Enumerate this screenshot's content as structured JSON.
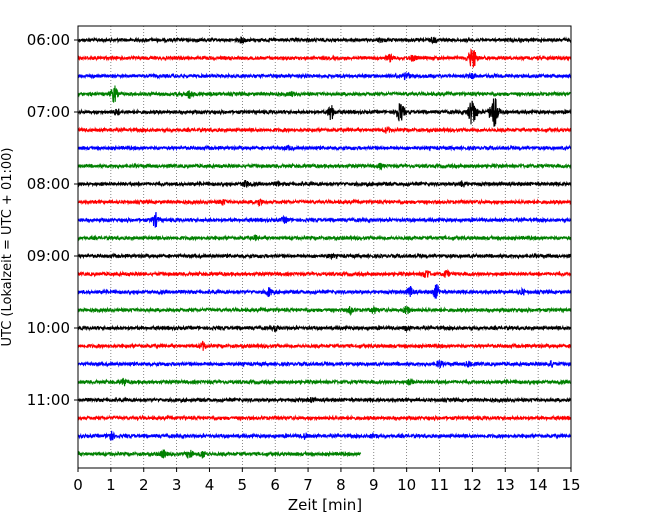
{
  "chart_data": {
    "type": "line",
    "title": "",
    "xlabel": "Zeit  [min]",
    "ylabel": "UTC (Lokalzeit = UTC + 01:00)",
    "xlim": [
      0,
      15
    ],
    "x_ticks": [
      "0",
      "1",
      "2",
      "3",
      "4",
      "5",
      "6",
      "7",
      "8",
      "9",
      "10",
      "11",
      "12",
      "13",
      "14",
      "15"
    ],
    "y_ticks": [
      "06:00",
      "07:00",
      "08:00",
      "09:00",
      "10:00",
      "11:00"
    ],
    "grid": "vertical dotted",
    "trace_interval_minutes": 15,
    "start_time": "06:00",
    "colors": [
      "#000000",
      "#ff0000",
      "#0000ff",
      "#008000"
    ],
    "traces": [
      {
        "time": "06:00",
        "color": "#000000",
        "end_min": 15,
        "events": [
          {
            "t": 5.0,
            "amp": 0.3
          },
          {
            "t": 9.2,
            "amp": 0.2
          },
          {
            "t": 10.8,
            "amp": 0.25
          }
        ]
      },
      {
        "time": "06:15",
        "color": "#ff0000",
        "end_min": 15,
        "events": [
          {
            "t": 9.5,
            "amp": 0.4
          },
          {
            "t": 10.2,
            "amp": 0.3
          },
          {
            "t": 12.0,
            "amp": 1.2
          }
        ]
      },
      {
        "time": "06:30",
        "color": "#0000ff",
        "end_min": 15,
        "events": [
          {
            "t": 10.0,
            "amp": 0.45
          },
          {
            "t": 12.0,
            "amp": 0.2
          }
        ]
      },
      {
        "time": "06:45",
        "color": "#008000",
        "end_min": 15,
        "events": [
          {
            "t": 1.1,
            "amp": 1.0
          },
          {
            "t": 3.4,
            "amp": 0.5
          },
          {
            "t": 6.5,
            "amp": 0.2
          }
        ]
      },
      {
        "time": "07:00",
        "color": "#000000",
        "end_min": 15,
        "events": [
          {
            "t": 1.2,
            "amp": 0.3
          },
          {
            "t": 7.7,
            "amp": 0.9
          },
          {
            "t": 9.8,
            "amp": 1.1
          },
          {
            "t": 12.0,
            "amp": 1.6
          },
          {
            "t": 12.65,
            "amp": 2.0
          }
        ]
      },
      {
        "time": "07:15",
        "color": "#ff0000",
        "end_min": 15,
        "events": [
          {
            "t": 9.4,
            "amp": 0.3
          }
        ]
      },
      {
        "time": "07:30",
        "color": "#0000ff",
        "end_min": 15,
        "events": [
          {
            "t": 6.4,
            "amp": 0.2
          }
        ]
      },
      {
        "time": "07:45",
        "color": "#008000",
        "end_min": 15,
        "events": [
          {
            "t": 9.2,
            "amp": 0.2
          }
        ]
      },
      {
        "time": "08:00",
        "color": "#000000",
        "end_min": 15,
        "events": [
          {
            "t": 5.1,
            "amp": 0.35
          },
          {
            "t": 6.1,
            "amp": 0.25
          },
          {
            "t": 11.7,
            "amp": 0.3
          }
        ]
      },
      {
        "time": "08:15",
        "color": "#ff0000",
        "end_min": 15,
        "events": [
          {
            "t": 4.4,
            "amp": 0.3
          },
          {
            "t": 5.5,
            "amp": 0.4
          }
        ]
      },
      {
        "time": "08:30",
        "color": "#0000ff",
        "end_min": 15,
        "events": [
          {
            "t": 2.35,
            "amp": 0.8
          },
          {
            "t": 6.3,
            "amp": 0.3
          }
        ]
      },
      {
        "time": "08:45",
        "color": "#008000",
        "end_min": 15,
        "events": [
          {
            "t": 5.4,
            "amp": 0.2
          }
        ]
      },
      {
        "time": "09:00",
        "color": "#000000",
        "end_min": 15,
        "events": [
          {
            "t": 7.7,
            "amp": 0.2
          }
        ]
      },
      {
        "time": "09:15",
        "color": "#ff0000",
        "end_min": 15,
        "events": [
          {
            "t": 10.6,
            "amp": 0.5
          },
          {
            "t": 11.2,
            "amp": 0.4
          }
        ]
      },
      {
        "time": "09:30",
        "color": "#0000ff",
        "end_min": 15,
        "events": [
          {
            "t": 5.8,
            "amp": 0.5
          },
          {
            "t": 10.1,
            "amp": 0.6
          },
          {
            "t": 10.9,
            "amp": 0.8
          },
          {
            "t": 13.5,
            "amp": 0.3
          }
        ]
      },
      {
        "time": "09:45",
        "color": "#008000",
        "end_min": 15,
        "events": [
          {
            "t": 8.3,
            "amp": 0.4
          },
          {
            "t": 9.0,
            "amp": 0.35
          },
          {
            "t": 10.0,
            "amp": 0.5
          }
        ]
      },
      {
        "time": "10:00",
        "color": "#000000",
        "end_min": 15,
        "events": [
          {
            "t": 6.0,
            "amp": 0.3
          },
          {
            "t": 10.0,
            "amp": 0.25
          }
        ]
      },
      {
        "time": "10:15",
        "color": "#ff0000",
        "end_min": 15,
        "events": [
          {
            "t": 3.8,
            "amp": 0.45
          }
        ]
      },
      {
        "time": "10:30",
        "color": "#0000ff",
        "end_min": 15,
        "events": [
          {
            "t": 11.0,
            "amp": 0.4
          },
          {
            "t": 11.9,
            "amp": 0.35
          },
          {
            "t": 14.4,
            "amp": 0.3
          }
        ]
      },
      {
        "time": "10:45",
        "color": "#008000",
        "end_min": 15,
        "events": [
          {
            "t": 1.4,
            "amp": 0.35
          },
          {
            "t": 10.1,
            "amp": 0.25
          }
        ]
      },
      {
        "time": "11:00",
        "color": "#000000",
        "end_min": 15,
        "events": [
          {
            "t": 7.1,
            "amp": 0.2
          }
        ]
      },
      {
        "time": "11:15",
        "color": "#ff0000",
        "end_min": 15,
        "events": []
      },
      {
        "time": "11:30",
        "color": "#0000ff",
        "end_min": 15,
        "events": [
          {
            "t": 1.0,
            "amp": 0.5
          },
          {
            "t": 6.9,
            "amp": 0.3
          },
          {
            "t": 9.0,
            "amp": 0.3
          }
        ]
      },
      {
        "time": "11:45",
        "color": "#008000",
        "end_min": 8.6,
        "events": [
          {
            "t": 2.6,
            "amp": 0.4
          },
          {
            "t": 3.4,
            "amp": 0.55
          },
          {
            "t": 3.8,
            "amp": 0.4
          }
        ]
      }
    ]
  }
}
